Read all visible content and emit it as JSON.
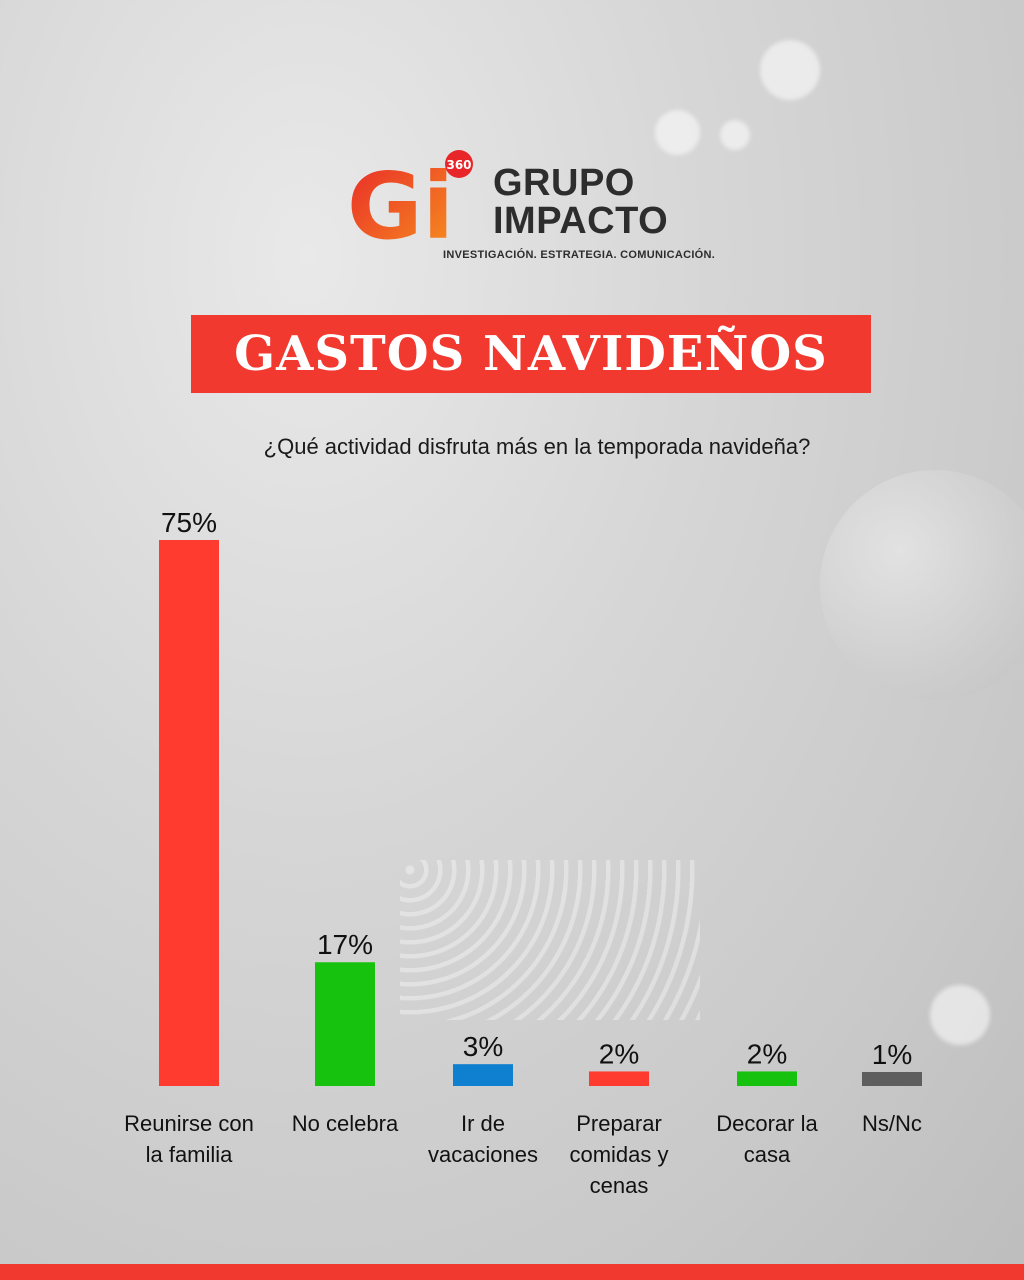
{
  "brand": {
    "logo_mark": "Gi",
    "logo_badge": "360",
    "name_line1": "GRUPO",
    "name_line2": "IMPACTO",
    "tagline": "INVESTIGACIÓN. ESTRATEGIA. COMUNICACIÓN."
  },
  "header": {
    "title": "GASTOS NAVIDEÑOS"
  },
  "question": "¿Qué actividad disfruta más en la temporada navideña?",
  "chart_data": {
    "type": "bar",
    "title": "GASTOS NAVIDEÑOS",
    "subtitle": "¿Qué actividad disfruta más en la temporada navideña?",
    "categories": [
      [
        "Reunirse con",
        "la familia"
      ],
      [
        "No celebra"
      ],
      [
        "Ir de",
        "vacaciones"
      ],
      [
        "Preparar",
        "comidas y",
        "cenas"
      ],
      [
        "Decorar la",
        "casa"
      ],
      [
        "Ns/Nc"
      ]
    ],
    "values": [
      75,
      17,
      3,
      2,
      2,
      1
    ],
    "value_labels": [
      "75%",
      "17%",
      "3%",
      "2%",
      "2%",
      "1%"
    ],
    "colors": [
      "#ff3b30",
      "#17c20f",
      "#0f7fcf",
      "#ff3b30",
      "#17c20f",
      "#5e5e5e"
    ],
    "ylim": [
      0,
      75
    ],
    "grid": false,
    "legend": "none"
  },
  "colors": {
    "accent": "#f2392f",
    "logo_orange": "#f7931e"
  }
}
